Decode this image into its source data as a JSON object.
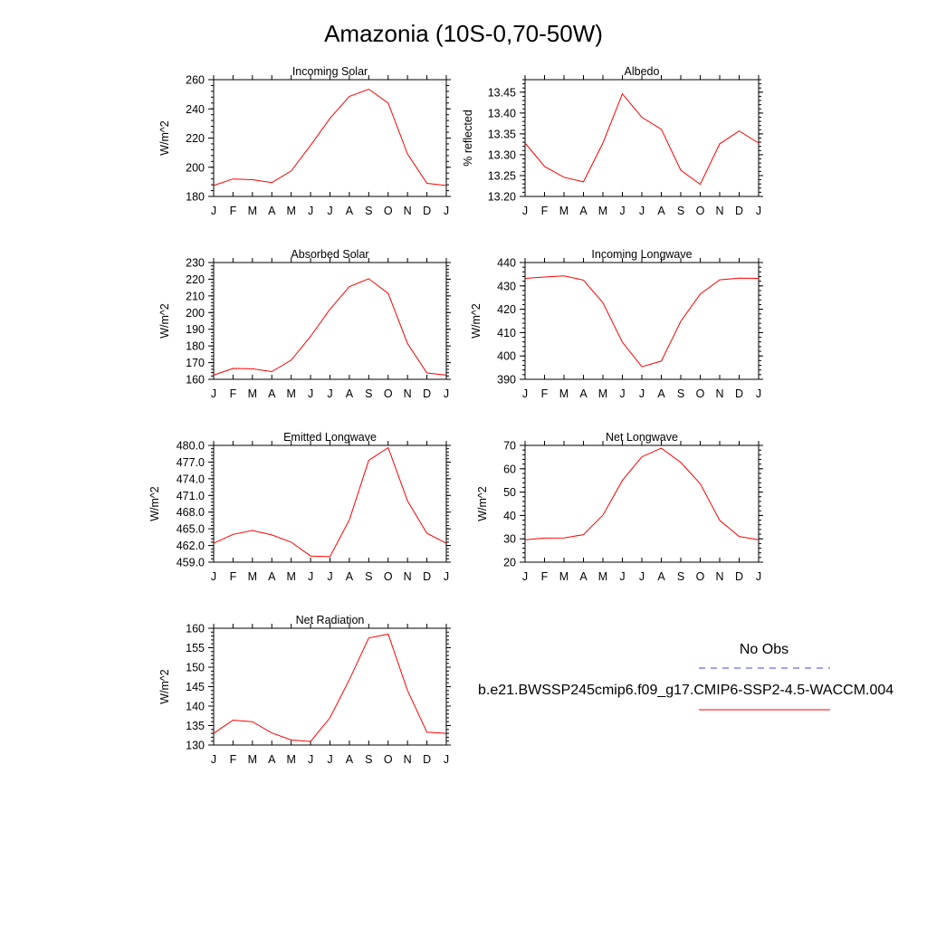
{
  "title": "Amazonia (10S-0,70-50W)",
  "legend": {
    "obs_label": "No Obs",
    "obs_color": "#4040ff",
    "model_label": "b.e21.BWSSP245cmip6.f09_g17.CMIP6-SSP2-4.5-WACCM.004",
    "model_color": "#ff0000"
  },
  "chart_data": [
    {
      "type": "line",
      "title": "Incoming Solar",
      "xlabel": "",
      "ylabel": "W/m^2",
      "x": [
        "J",
        "F",
        "M",
        "A",
        "M",
        "J",
        "J",
        "A",
        "S",
        "O",
        "N",
        "D",
        "J"
      ],
      "ylim": [
        180,
        260
      ],
      "yticks": [
        "180",
        "200",
        "220",
        "240",
        "260"
      ],
      "series": [
        {
          "values": [
            187.5,
            192,
            191.5,
            189.5,
            197.5,
            215,
            233.5,
            248.5,
            253.5,
            244,
            209,
            189,
            187.5
          ]
        }
      ]
    },
    {
      "type": "line",
      "title": "Albedo",
      "xlabel": "",
      "ylabel": "% reflected",
      "x": [
        "J",
        "F",
        "M",
        "A",
        "M",
        "J",
        "J",
        "A",
        "S",
        "O",
        "N",
        "D",
        "J"
      ],
      "ylim": [
        13.2,
        13.48
      ],
      "yticks": [
        "13.20",
        "13.25",
        "13.30",
        "13.35",
        "13.40",
        "13.45"
      ],
      "series": [
        {
          "values": [
            13.328,
            13.272,
            13.246,
            13.235,
            13.328,
            13.446,
            13.39,
            13.361,
            13.263,
            13.229,
            13.326,
            13.357,
            13.328
          ]
        }
      ]
    },
    {
      "type": "line",
      "title": "Absorbed Solar",
      "xlabel": "",
      "ylabel": "W/m^2",
      "x": [
        "J",
        "F",
        "M",
        "A",
        "M",
        "J",
        "J",
        "A",
        "S",
        "O",
        "N",
        "D",
        "J"
      ],
      "ylim": [
        160,
        230
      ],
      "yticks": [
        "160",
        "170",
        "180",
        "190",
        "200",
        "210",
        "220",
        "230"
      ],
      "series": [
        {
          "values": [
            162.5,
            166.5,
            166.3,
            164.6,
            171.5,
            185.8,
            202,
            215.5,
            220.3,
            211.5,
            181.4,
            163.8,
            162.5
          ]
        }
      ]
    },
    {
      "type": "line",
      "title": "Incoming Longwave",
      "xlabel": "",
      "ylabel": "W/m^2",
      "x": [
        "J",
        "F",
        "M",
        "A",
        "M",
        "J",
        "J",
        "A",
        "S",
        "O",
        "N",
        "D",
        "J"
      ],
      "ylim": [
        390,
        440
      ],
      "yticks": [
        "390",
        "400",
        "410",
        "420",
        "430",
        "440"
      ],
      "series": [
        {
          "values": [
            433.2,
            433.8,
            434.3,
            432.5,
            422.8,
            405.9,
            395.4,
            397.8,
            414.8,
            426.5,
            432.6,
            433.3,
            433.2
          ]
        }
      ]
    },
    {
      "type": "line",
      "title": "Emitted Longwave",
      "xlabel": "",
      "ylabel": "W/m^2",
      "x": [
        "J",
        "F",
        "M",
        "A",
        "M",
        "J",
        "J",
        "A",
        "S",
        "O",
        "N",
        "D",
        "J"
      ],
      "ylim": [
        459,
        480
      ],
      "yticks": [
        "459.0",
        "462.0",
        "465.0",
        "468.0",
        "471.0",
        "474.0",
        "477.0",
        "480.0"
      ],
      "series": [
        {
          "values": [
            462.4,
            464.0,
            464.7,
            463.9,
            462.6,
            460.1,
            460.0,
            466.6,
            477.3,
            479.6,
            470.0,
            464.2,
            462.4
          ]
        }
      ]
    },
    {
      "type": "line",
      "title": "Net Longwave",
      "xlabel": "",
      "ylabel": "W/m^2",
      "x": [
        "J",
        "F",
        "M",
        "A",
        "M",
        "J",
        "J",
        "A",
        "S",
        "O",
        "N",
        "D",
        "J"
      ],
      "ylim": [
        20,
        70
      ],
      "yticks": [
        "20",
        "30",
        "40",
        "50",
        "60",
        "70"
      ],
      "series": [
        {
          "values": [
            29.6,
            30.3,
            30.4,
            31.8,
            40.1,
            55,
            65.1,
            68.8,
            62.7,
            53.6,
            37.9,
            31,
            29.6
          ]
        }
      ]
    },
    {
      "type": "line",
      "title": "Net Radiation",
      "xlabel": "",
      "ylabel": "W/m^2",
      "x": [
        "J",
        "F",
        "M",
        "A",
        "M",
        "J",
        "J",
        "A",
        "S",
        "O",
        "N",
        "D",
        "J"
      ],
      "ylim": [
        130,
        160
      ],
      "yticks": [
        "130",
        "135",
        "140",
        "145",
        "150",
        "155",
        "160"
      ],
      "series": [
        {
          "values": [
            133,
            136.4,
            136,
            133.1,
            131.3,
            130.9,
            137,
            146.8,
            157.5,
            158.5,
            144,
            133.3,
            133
          ]
        }
      ]
    }
  ]
}
